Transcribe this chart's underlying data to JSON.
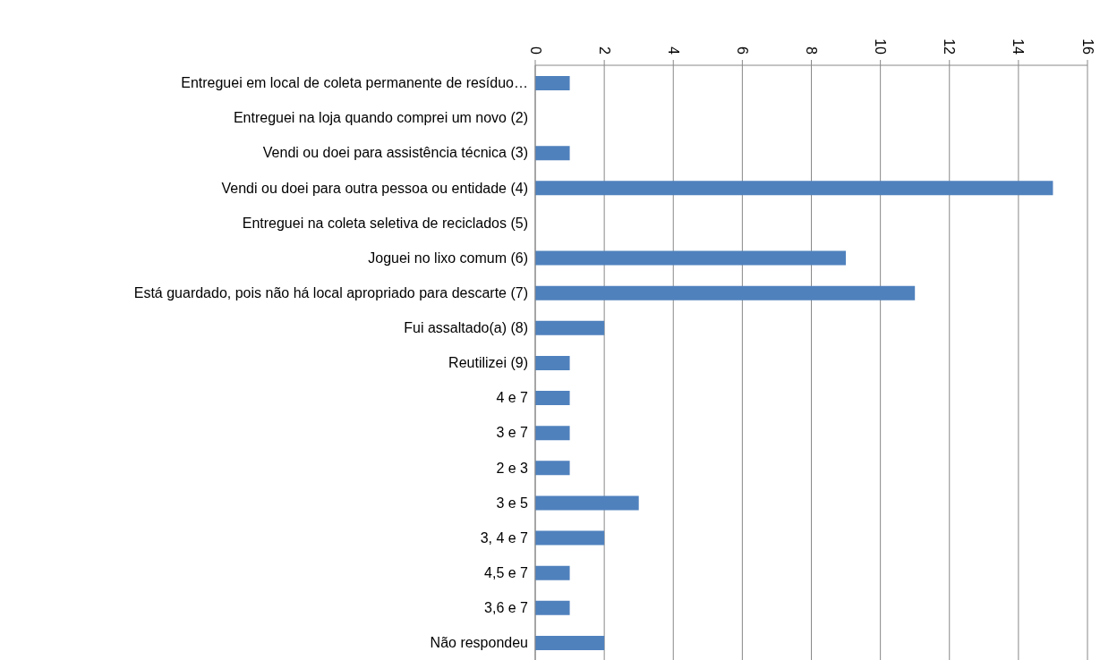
{
  "chart_data": {
    "type": "bar",
    "orientation": "horizontal",
    "categories": [
      "Entreguei em local de coleta permanente de resíduo…",
      "Entreguei na loja quando comprei um novo (2)",
      "Vendi ou doei para assistência técnica (3)",
      "Vendi ou doei para outra pessoa ou entidade (4)",
      "Entreguei na coleta seletiva de reciclados (5)",
      "Joguei no lixo comum (6)",
      "Está guardado, pois não há local apropriado para descarte (7)",
      "Fui assaltado(a) (8)",
      "Reutilizei (9)",
      "4 e 7",
      "3 e 7",
      "2 e 3",
      "3 e 5",
      "3, 4 e 7",
      "4,5 e 7",
      "3,6 e 7",
      "Não respondeu"
    ],
    "values": [
      1,
      0,
      1,
      15,
      0,
      9,
      11,
      2,
      1,
      1,
      1,
      1,
      3,
      2,
      1,
      1,
      2
    ],
    "color": "#4f81bd",
    "xlim": [
      0,
      16
    ],
    "xticks": [
      0,
      2,
      4,
      6,
      8,
      10,
      12,
      14,
      16
    ],
    "grid": "x"
  }
}
